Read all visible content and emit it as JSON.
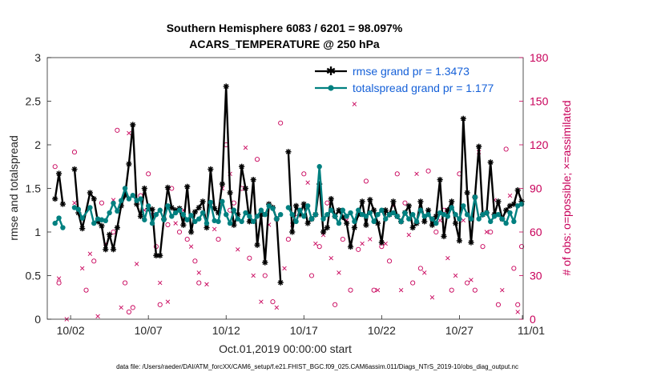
{
  "chart_data": {
    "type": "line",
    "title": "Southern Hemisphere 6083 / 6201 = 98.097%",
    "subtitle": "ACARS_TEMPERATURE @ 250 hPa",
    "xlabel": "Oct.01,2019 00:00:00 start",
    "ylabel": "rmse and totalspread",
    "y2label": "# of obs: o=possible; ×=assimilated",
    "footnote": "data file: /Users/raeder/DAI/ATM_forcXX/CAM6_setup/f.e21.FHIST_BGC.f09_025.CAM6assim.011/Diags_NTrS_2019-10/obs_diag_output.nc",
    "xlim": [
      0.5,
      31.1
    ],
    "ylim": [
      0,
      3
    ],
    "y2lim": [
      0,
      180
    ],
    "xticks": [
      {
        "x": 2,
        "label": "10/02"
      },
      {
        "x": 7,
        "label": "10/07"
      },
      {
        "x": 12,
        "label": "10/12"
      },
      {
        "x": 17,
        "label": "10/17"
      },
      {
        "x": 22,
        "label": "10/22"
      },
      {
        "x": 27,
        "label": "10/27"
      },
      {
        "x": 32,
        "label": "11/01"
      }
    ],
    "yticks": [
      "0",
      "0.5",
      "1",
      "1.5",
      "2",
      "2.5",
      "3"
    ],
    "y2ticks": [
      "0",
      "30",
      "60",
      "90",
      "120",
      "150",
      "180"
    ],
    "legend_position": "top-right",
    "series": [
      {
        "name": "rmse grand pr = 1.3473",
        "color": "#000000",
        "marker": "star",
        "x": [
          1.0,
          1.25,
          1.5,
          2.25,
          2.5,
          2.75,
          3.25,
          3.5,
          3.75,
          4.0,
          4.25,
          4.5,
          4.75,
          5.0,
          5.25,
          5.5,
          5.75,
          6.0,
          6.25,
          6.5,
          6.75,
          7.0,
          7.25,
          7.5,
          7.75,
          8.0,
          8.25,
          8.5,
          8.75,
          9.0,
          9.25,
          9.5,
          9.75,
          10.0,
          10.25,
          10.5,
          10.75,
          11.0,
          11.25,
          11.5,
          11.75,
          12.0,
          12.25,
          12.5,
          12.75,
          13.0,
          13.25,
          13.5,
          13.75,
          14.0,
          14.25,
          14.5,
          14.75,
          15.0,
          15.25,
          15.5,
          16.0,
          16.25,
          16.5,
          16.75,
          17.0,
          17.25,
          17.5,
          17.75,
          18.0,
          18.25,
          18.5,
          18.75,
          19.0,
          19.25,
          19.5,
          19.75,
          20.0,
          20.25,
          20.5,
          20.75,
          21.0,
          21.25,
          21.5,
          21.75,
          22.0,
          22.25,
          22.5,
          22.75,
          23.0,
          23.25,
          23.5,
          23.75,
          24.0,
          24.25,
          24.5,
          24.75,
          25.0,
          25.25,
          25.5,
          25.75,
          26.0,
          26.25,
          26.5,
          26.75,
          27.0,
          27.25,
          27.5,
          27.75,
          28.0,
          28.25,
          28.5,
          28.75,
          29.0,
          29.25,
          29.5,
          29.75,
          30.0,
          30.25,
          30.5,
          30.75,
          31.0
        ],
        "values": [
          1.38,
          1.67,
          1.32,
          1.72,
          1.22,
          1.04,
          1.45,
          1.38,
          1.12,
          1.07,
          0.8,
          0.97,
          0.8,
          1.05,
          1.3,
          1.42,
          1.78,
          2.23,
          1.32,
          1.18,
          1.5,
          1.27,
          1.26,
          0.73,
          0.73,
          1.15,
          1.51,
          1.28,
          1.25,
          1.27,
          1.08,
          1.52,
          1.0,
          1.23,
          1.28,
          1.35,
          1.05,
          1.72,
          1.27,
          1.22,
          1.55,
          2.67,
          1.45,
          1.08,
          1.2,
          1.75,
          1.5,
          1.12,
          1.6,
          0.85,
          1.2,
          0.65,
          1.32,
          1.28,
          1.15,
          0.42,
          1.92,
          1.0,
          1.3,
          1.2,
          1.32,
          1.1,
          1.15,
          1.2,
          1.55,
          1.0,
          1.05,
          1.38,
          1.18,
          1.25,
          1.17,
          1.1,
          0.83,
          1.05,
          1.2,
          1.35,
          1.08,
          1.37,
          1.25,
          1.1,
          0.88,
          1.25,
          1.2,
          1.35,
          1.18,
          1.12,
          1.22,
          1.3,
          1.05,
          1.1,
          1.35,
          1.12,
          1.25,
          1.08,
          1.18,
          1.6,
          0.95,
          1.25,
          1.35,
          1.1,
          0.9,
          2.3,
          1.45,
          0.88,
          1.4,
          1.98,
          1.2,
          1.22,
          1.8,
          1.2,
          1.35,
          1.15,
          1.25,
          1.3,
          1.32,
          1.48,
          1.35
        ],
        "gaps_after_x": [
          1.5,
          15.5
        ]
      },
      {
        "name": "totalspread grand pr = 1.177",
        "color": "#008080",
        "marker": "circle",
        "x": [
          1.0,
          1.25,
          1.5,
          2.25,
          2.5,
          2.75,
          3.25,
          3.5,
          3.75,
          4.0,
          4.25,
          4.5,
          4.75,
          5.0,
          5.25,
          5.5,
          5.75,
          6.0,
          6.25,
          6.5,
          6.75,
          7.0,
          7.25,
          7.5,
          7.75,
          8.0,
          8.25,
          8.5,
          8.75,
          9.0,
          9.25,
          9.5,
          9.75,
          10.0,
          10.25,
          10.5,
          10.75,
          11.0,
          11.25,
          11.5,
          11.75,
          12.0,
          12.25,
          12.5,
          12.75,
          13.0,
          13.25,
          13.5,
          13.75,
          14.0,
          14.25,
          14.5,
          14.75,
          15.0,
          15.25,
          15.5,
          16.0,
          16.25,
          16.5,
          16.75,
          17.0,
          17.25,
          17.5,
          17.75,
          18.0,
          18.25,
          18.5,
          18.75,
          19.0,
          19.25,
          19.5,
          19.75,
          20.0,
          20.25,
          20.5,
          20.75,
          21.0,
          21.25,
          21.5,
          21.75,
          22.0,
          22.25,
          22.5,
          22.75,
          23.0,
          23.25,
          23.5,
          23.75,
          24.0,
          24.25,
          24.5,
          24.75,
          25.0,
          25.25,
          25.5,
          25.75,
          26.0,
          26.25,
          26.5,
          26.75,
          27.0,
          27.25,
          27.5,
          27.75,
          28.0,
          28.25,
          28.5,
          28.75,
          29.0,
          29.25,
          29.5,
          29.75,
          30.0,
          30.25,
          30.5,
          30.75,
          31.0
        ],
        "values": [
          1.1,
          1.16,
          1.05,
          1.28,
          1.26,
          1.16,
          1.28,
          1.1,
          1.15,
          1.14,
          1.13,
          1.22,
          1.33,
          1.24,
          1.36,
          1.5,
          1.38,
          1.42,
          1.36,
          1.38,
          1.14,
          1.3,
          1.1,
          1.2,
          1.25,
          1.14,
          1.3,
          1.18,
          1.22,
          1.25,
          1.2,
          1.14,
          1.19,
          1.12,
          1.15,
          1.22,
          1.1,
          1.34,
          1.13,
          1.12,
          1.35,
          1.2,
          1.1,
          1.25,
          1.15,
          1.12,
          1.22,
          1.18,
          1.12,
          1.18,
          1.25,
          1.2,
          1.3,
          1.27,
          1.15,
          1.2,
          1.28,
          1.2,
          1.12,
          1.25,
          1.18,
          1.3,
          1.15,
          1.2,
          1.75,
          1.15,
          1.2,
          1.25,
          1.18,
          1.1,
          1.25,
          1.18,
          1.22,
          1.12,
          1.25,
          1.2,
          1.18,
          1.22,
          1.12,
          1.2,
          1.25,
          1.15,
          1.2,
          1.22,
          1.18,
          1.12,
          1.22,
          1.15,
          1.2,
          1.12,
          1.25,
          1.18,
          1.2,
          1.15,
          1.1,
          1.22,
          1.2,
          1.18,
          1.28,
          1.2,
          1.15,
          1.3,
          1.2,
          1.15,
          1.4,
          1.15,
          1.2,
          1.22,
          1.12,
          1.18,
          1.2,
          1.15,
          1.1,
          1.22,
          1.12,
          1.3,
          1.32
        ],
        "gaps_after_x": [
          1.5,
          15.5
        ]
      }
    ],
    "obs_possible": {
      "marker": "o",
      "color": "#c8005a",
      "x": [
        1.0,
        1.25,
        2.25,
        3.0,
        3.5,
        4.0,
        4.75,
        5.0,
        5.5,
        5.75,
        6.0,
        6.5,
        7.0,
        7.5,
        7.75,
        8.25,
        8.5,
        9.0,
        9.5,
        10.0,
        10.25,
        11.0,
        11.5,
        12.0,
        12.25,
        12.5,
        13.0,
        13.5,
        14.0,
        14.5,
        15.0,
        15.5,
        16.0,
        16.5,
        17.0,
        17.5,
        18.0,
        18.5,
        19.0,
        19.5,
        20.0,
        20.5,
        21.0,
        21.5,
        22.0,
        22.5,
        23.0,
        23.5,
        24.0,
        24.5,
        25.0,
        25.5,
        26.0,
        26.5,
        27.0,
        27.5,
        28.0,
        28.5,
        29.0,
        29.5,
        30.0,
        30.5,
        30.75,
        31.0
      ],
      "values": [
        105,
        25,
        115,
        20,
        40,
        80,
        60,
        130,
        25,
        5,
        8,
        85,
        100,
        50,
        10,
        65,
        90,
        60,
        55,
        40,
        25,
        80,
        55,
        120,
        75,
        80,
        90,
        42,
        110,
        30,
        12,
        135,
        55,
        70,
        100,
        30,
        50,
        80,
        10,
        55,
        20,
        48,
        95,
        20,
        50,
        40,
        100,
        80,
        25,
        35,
        102,
        60,
        75,
        20,
        100,
        25,
        20,
        50,
        60,
        10,
        117,
        35,
        10,
        50
      ]
    },
    "obs_assimilated": {
      "marker": "x",
      "color": "#c8005a",
      "x": [
        1.25,
        1.75,
        2.25,
        2.75,
        3.25,
        3.75,
        4.25,
        4.75,
        5.25,
        5.75,
        6.25,
        6.75,
        7.25,
        7.75,
        8.25,
        8.75,
        9.25,
        9.75,
        10.25,
        10.75,
        11.25,
        11.75,
        12.25,
        12.75,
        13.25,
        13.75,
        14.25,
        14.75,
        15.25,
        15.75,
        16.25,
        16.75,
        17.25,
        17.75,
        18.25,
        18.75,
        19.25,
        19.75,
        20.25,
        20.75,
        21.25,
        21.75,
        22.25,
        22.75,
        23.25,
        23.75,
        24.25,
        24.75,
        25.25,
        25.75,
        26.25,
        26.75,
        27.25,
        27.75,
        28.25,
        28.75,
        29.25,
        29.75,
        30.25,
        30.75
      ],
      "values": [
        28,
        0,
        80,
        35,
        45,
        2,
        52,
        82,
        8,
        128,
        38,
        75,
        72,
        25,
        12,
        66,
        75,
        50,
        32,
        24,
        62,
        90,
        100,
        48,
        118,
        30,
        12,
        65,
        8,
        35,
        65,
        75,
        94,
        52,
        58,
        42,
        32,
        68,
        148,
        52,
        55,
        20,
        52,
        78,
        20,
        58,
        100,
        32,
        15,
        68,
        42,
        30,
        68,
        27,
        115,
        60,
        82,
        20,
        85,
        5
      ]
    }
  }
}
